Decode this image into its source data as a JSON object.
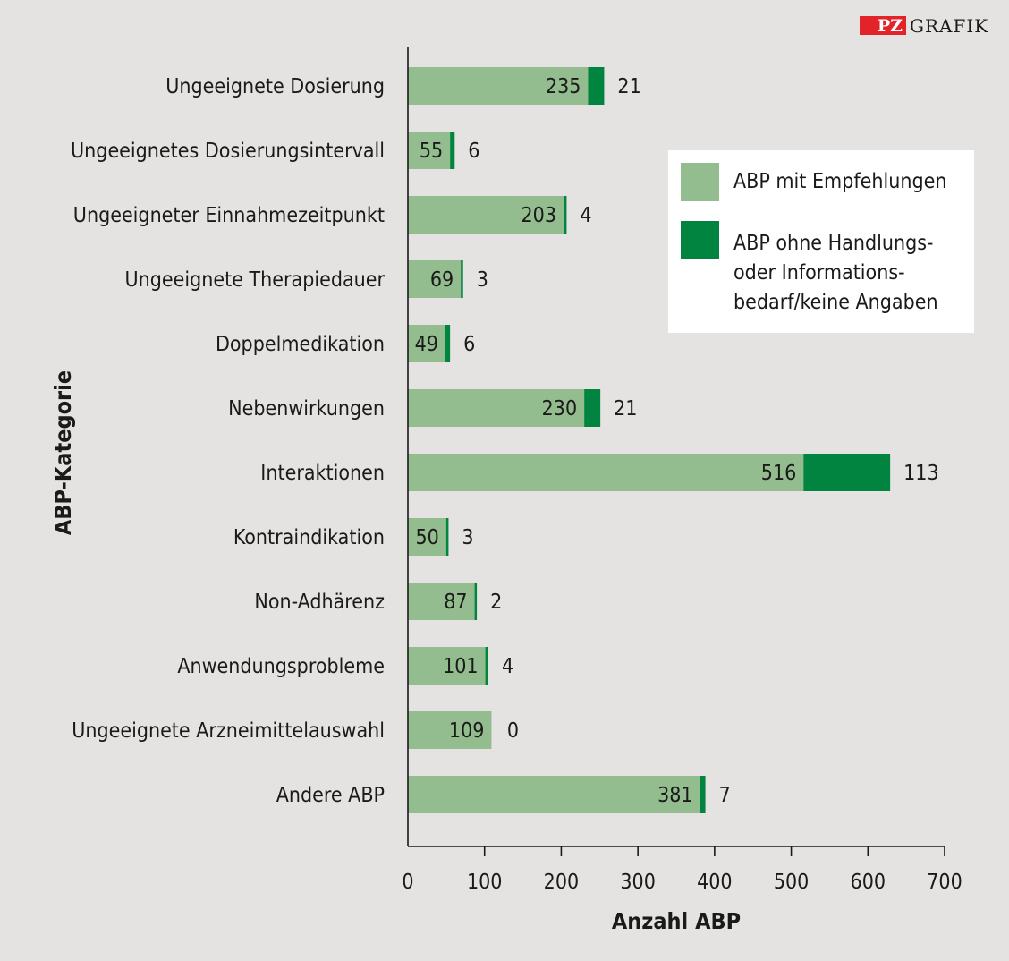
{
  "logo": {
    "pz": "PZ",
    "grafik": "GRAFIK",
    "pz_color": "#e3232a"
  },
  "chart_data": {
    "type": "bar",
    "orientation": "horizontal",
    "stacked": true,
    "title": "",
    "xlabel": "Anzahl ABP",
    "ylabel": "ABP-Kategorie",
    "xlim": [
      0,
      700
    ],
    "xticks": [
      0,
      100,
      200,
      300,
      400,
      500,
      600,
      700
    ],
    "grid": false,
    "legend_position": "top-right",
    "categories": [
      "Ungeeignete Dosierung",
      "Ungeeignetes Dosierungsintervall",
      "Ungeeigneter Einnahmezeitpunkt",
      "Ungeeignete Therapiedauer",
      "Doppelmedikation",
      "Nebenwirkungen",
      "Interaktionen",
      "Kontraindikation",
      "Non-Adhärenz",
      "Anwendungsprobleme",
      "Ungeeignete Arzneimittelauswahl",
      "Andere ABP"
    ],
    "series": [
      {
        "name": "ABP mit Empfehlungen",
        "color": "#93bd8e",
        "values": [
          235,
          55,
          203,
          69,
          49,
          230,
          516,
          50,
          87,
          101,
          109,
          381
        ]
      },
      {
        "name": "ABP ohne Handlungs- oder Informationsbedarf/keine Angaben",
        "color": "#00843f",
        "values": [
          21,
          6,
          4,
          3,
          6,
          21,
          113,
          3,
          2,
          4,
          0,
          7
        ]
      }
    ],
    "legend_lines": [
      [
        "ABP mit Empfehlungen"
      ],
      [
        "ABP ohne Handlungs-",
        "oder Informations-",
        "bedarf/keine Angaben"
      ]
    ]
  }
}
